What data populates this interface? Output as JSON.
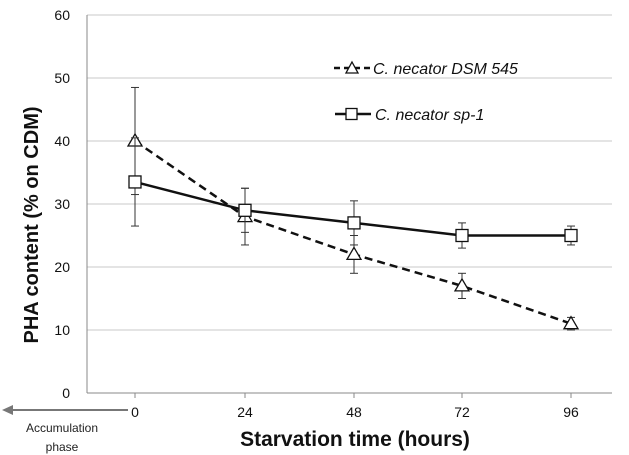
{
  "chart_data": {
    "type": "line",
    "title": "",
    "xlabel": "Starvation time (hours)",
    "ylabel": "PHA content (% on CDM)",
    "x": [
      0,
      24,
      48,
      72,
      96
    ],
    "x_tick_labels": [
      "0",
      "24",
      "48",
      "72",
      "96"
    ],
    "ylim": [
      0,
      60
    ],
    "y_ticks": [
      0,
      10,
      20,
      30,
      40,
      50,
      60
    ],
    "grid": "horizontal",
    "legend_position": "top-right",
    "series": [
      {
        "name": "C. necator DSM 545",
        "values": [
          40,
          28,
          22,
          17,
          11
        ],
        "errors": [
          8.5,
          4.5,
          3,
          2,
          1
        ],
        "marker": "triangle",
        "line_style": "dashed",
        "color": "#111111"
      },
      {
        "name": "C. necator sp-1",
        "values": [
          33.5,
          29,
          27,
          25,
          25
        ],
        "errors": [
          7,
          3.5,
          3.5,
          2,
          1.5
        ],
        "marker": "square",
        "line_style": "solid",
        "color": "#111111"
      }
    ],
    "annotation": {
      "line1": "Accumulation",
      "line2": "phase"
    }
  }
}
